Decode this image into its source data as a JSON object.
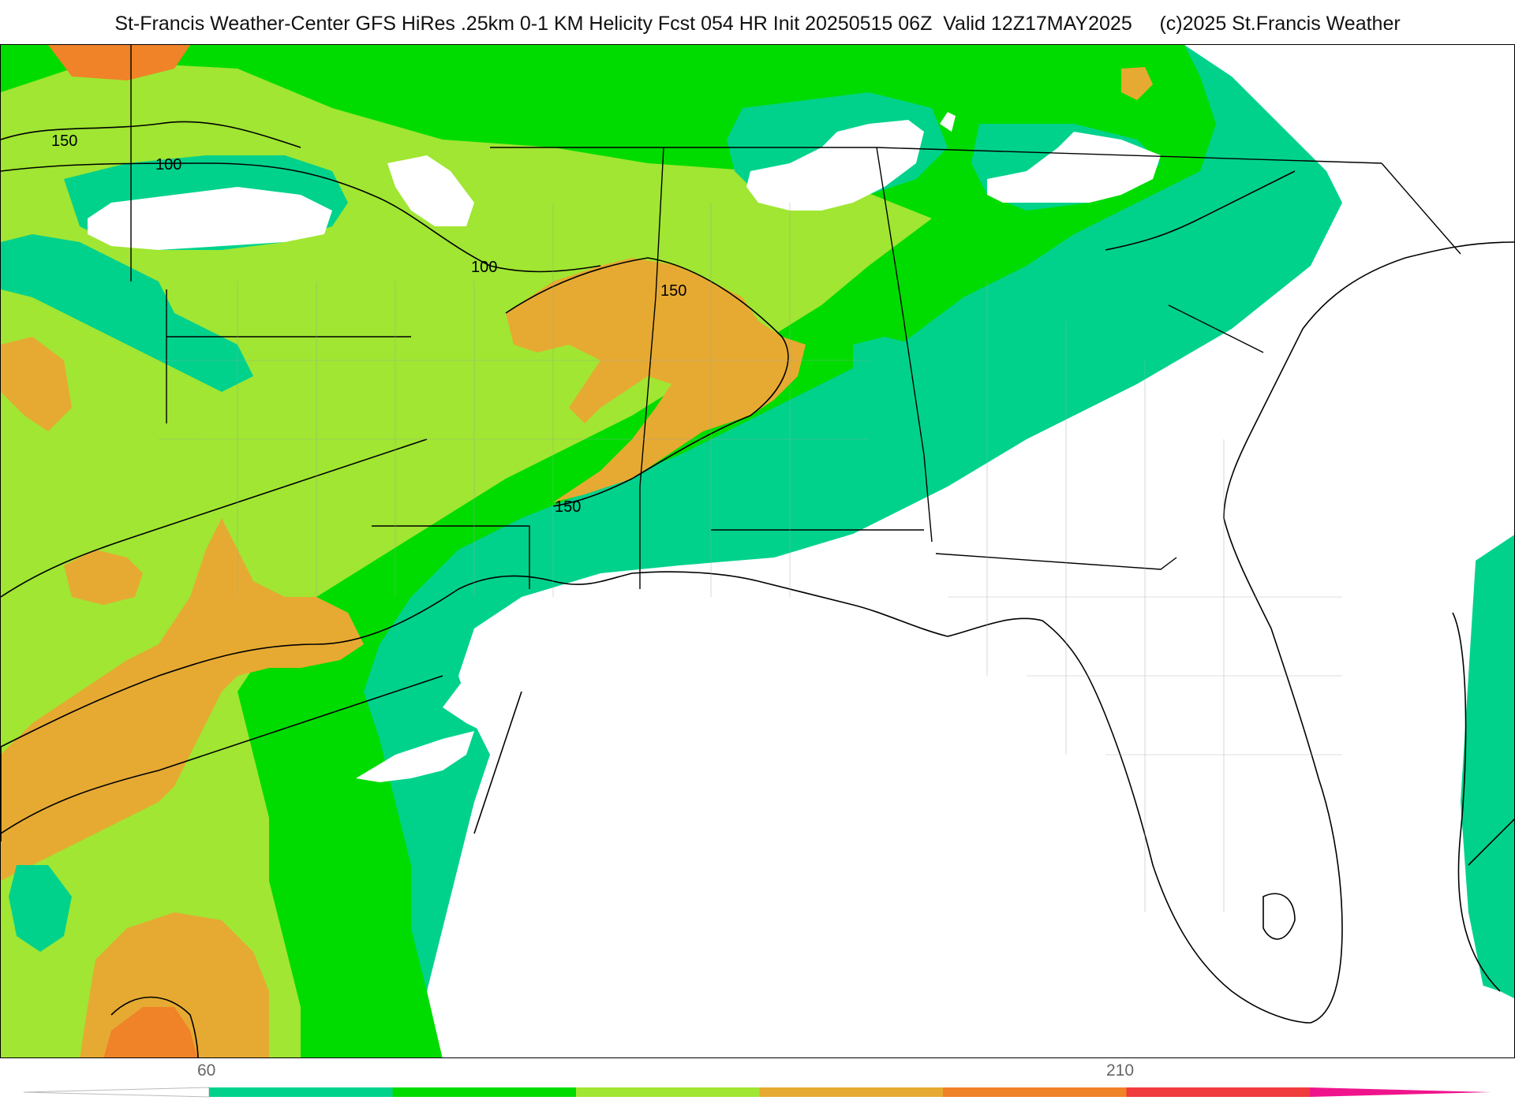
{
  "header": {
    "title": "St-Francis Weather-Center GFS HiRes .25km 0-1 KM Helicity Fcst 054 HR Init 20250515 06Z  Valid 12Z17MAY2025     (c)2025 St.Francis Weather"
  },
  "map": {
    "variable": "0-1 KM Helicity",
    "contour_labels": [
      "150",
      "100",
      "100",
      "150",
      "150"
    ]
  },
  "legend": {
    "tick_labels": [
      "60",
      "210"
    ],
    "colors": [
      "#00d28c",
      "#00dc00",
      "#a0e632",
      "#e6aa32",
      "#f08228",
      "#f03c3c",
      "#f0148c"
    ]
  }
}
